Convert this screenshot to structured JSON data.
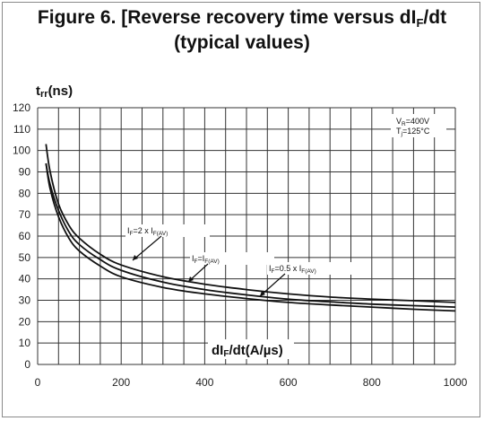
{
  "chart_data": {
    "type": "line",
    "title_line1_pre": "Figure 6. [Reverse recovery time versus dI",
    "title_line1_sub": "F",
    "title_line1_post": "/dt",
    "title_line2": "(typical values)",
    "ylabel_main": "t",
    "ylabel_sub": "rr",
    "ylabel_unit": "(ns)",
    "xlabel_main": "dI",
    "xlabel_sub": "F",
    "xlabel_unit": "/dt(A/µs)",
    "xlim": [
      0,
      1000
    ],
    "ylim": [
      0,
      120
    ],
    "xticks": [
      0,
      200,
      400,
      600,
      800,
      1000
    ],
    "yticks": [
      0,
      10,
      20,
      30,
      40,
      50,
      60,
      70,
      80,
      90,
      100,
      110,
      120
    ],
    "grid": true,
    "conditions": [
      {
        "main": "V",
        "sub": "R",
        "rest": "=400V"
      },
      {
        "main": "T",
        "sub": "j",
        "rest": "=125°C"
      }
    ],
    "series": [
      {
        "name": "IF=2 x IF(AV)",
        "label_parts": [
          [
            "I",
            ""
          ],
          [
            "F",
            "sub"
          ],
          [
            "=2 x I",
            ""
          ],
          [
            "F(AV)",
            "sub"
          ]
        ],
        "x": [
          20,
          30,
          50,
          75,
          100,
          150,
          200,
          300,
          400,
          500,
          600,
          700,
          800,
          900,
          1000
        ],
        "y": [
          103,
          90,
          75,
          65,
          59,
          51.5,
          46.5,
          41,
          37.5,
          35,
          33,
          31.5,
          30.5,
          29.8,
          29
        ]
      },
      {
        "name": "IF=IF(AV)",
        "label_parts": [
          [
            "I",
            ""
          ],
          [
            "F",
            "sub"
          ],
          [
            "=I",
            ""
          ],
          [
            "F(AV)",
            "sub"
          ]
        ],
        "x": [
          20,
          30,
          50,
          75,
          100,
          150,
          200,
          300,
          400,
          500,
          600,
          700,
          800,
          900,
          1000
        ],
        "y": [
          94,
          84,
          72,
          62,
          56,
          49,
          44,
          38.5,
          35,
          32.5,
          30.5,
          29.3,
          28.2,
          27.5,
          26.8
        ]
      },
      {
        "name": "IF=0.5 x IF(AV)",
        "label_parts": [
          [
            "I",
            ""
          ],
          [
            "F",
            "sub"
          ],
          [
            "=0.5 x I",
            ""
          ],
          [
            "F(AV)",
            "sub"
          ]
        ],
        "x": [
          20,
          30,
          50,
          75,
          100,
          150,
          200,
          300,
          400,
          500,
          600,
          700,
          800,
          900,
          1000
        ],
        "y": [
          94,
          82,
          69,
          59,
          53,
          46,
          41,
          36,
          33,
          30.8,
          29,
          27.8,
          26.8,
          25.8,
          25
        ]
      }
    ]
  }
}
